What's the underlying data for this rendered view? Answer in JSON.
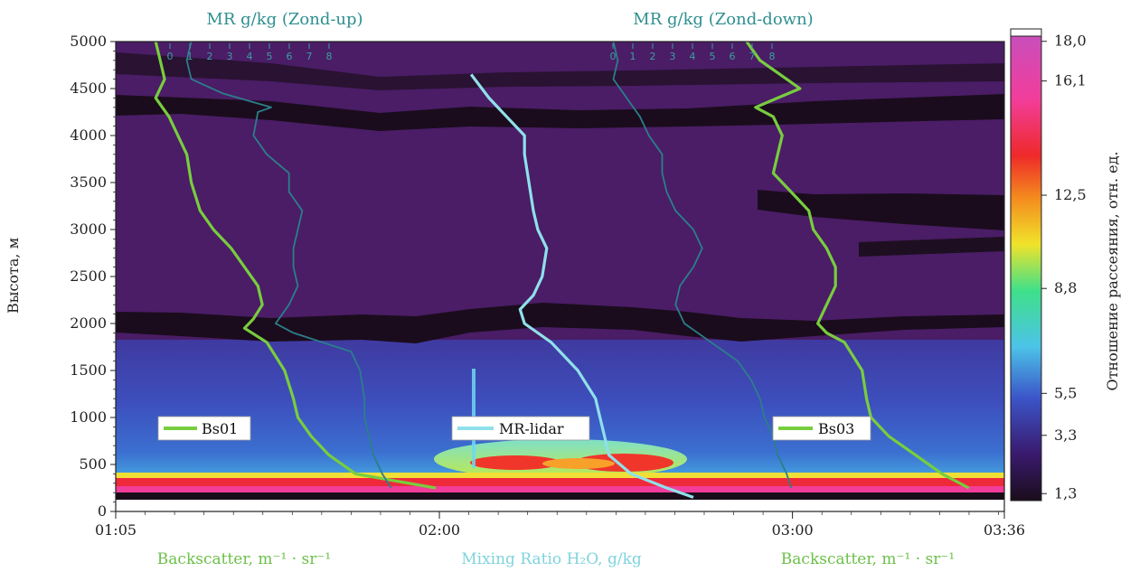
{
  "chart_data": {
    "type": "heatmap",
    "title": "",
    "ylabel": "Высота, м",
    "ylim": [
      0,
      5000
    ],
    "yticks": [
      "0",
      "500",
      "1000",
      "1500",
      "2000",
      "2500",
      "3000",
      "3500",
      "4000",
      "4500",
      "5000"
    ],
    "xticks": [
      "01:05",
      "02:00",
      "03:00",
      "03:36"
    ],
    "x_time_range": [
      "01:05",
      "03:36"
    ],
    "colorbar": {
      "label": "Отношение рассеяния, отн. ед.",
      "ticks": [
        "1,3",
        "3,3",
        "5,5",
        "8,8",
        "12,5",
        "16,1",
        "18,0"
      ],
      "tick_values": [
        1.3,
        3.3,
        5.5,
        8.8,
        12.5,
        16.1,
        18.0
      ],
      "colors": [
        "#1a0d1a",
        "#3a1a6e",
        "#3b55c8",
        "#4cc3e8",
        "#3fe08a",
        "#f0e32a",
        "#f48a1e",
        "#ee2a2a",
        "#f23d9a",
        "#c84fbd"
      ]
    },
    "top_labels": {
      "left": "MR g/kg (Zond-up)",
      "right": "MR g/kg (Zond-down)",
      "sub_ticks": [
        "0",
        "1",
        "2",
        "3",
        "4",
        "5",
        "6",
        "7",
        "8"
      ]
    },
    "bottom_labels": {
      "left": "Backscatter, m⁻¹ · sr⁻¹",
      "center": "Mixing Ratio H₂O, g/kg",
      "right": "Backscatter, m⁻¹ · sr⁻¹"
    },
    "legend": [
      {
        "name": "Bs01",
        "color": "#78cd3e"
      },
      {
        "name": "MR-lidar",
        "color": "#8fe0ea"
      },
      {
        "name": "Bs03",
        "color": "#78cd3e"
      }
    ],
    "series": [
      {
        "name": "Bs01",
        "color": "#78cd3e",
        "points": [
          [
            5000,
            0.045
          ],
          [
            4800,
            0.05
          ],
          [
            4600,
            0.055
          ],
          [
            4400,
            0.045
          ],
          [
            4200,
            0.06
          ],
          [
            4000,
            0.07
          ],
          [
            3800,
            0.08
          ],
          [
            3500,
            0.085
          ],
          [
            3200,
            0.095
          ],
          [
            3000,
            0.11
          ],
          [
            2800,
            0.13
          ],
          [
            2600,
            0.145
          ],
          [
            2400,
            0.16
          ],
          [
            2200,
            0.165
          ],
          [
            2050,
            0.155
          ],
          [
            1950,
            0.145
          ],
          [
            1800,
            0.17
          ],
          [
            1500,
            0.19
          ],
          [
            1200,
            0.2
          ],
          [
            1000,
            0.205
          ],
          [
            800,
            0.22
          ],
          [
            600,
            0.24
          ],
          [
            400,
            0.27
          ],
          [
            250,
            0.36
          ]
        ]
      },
      {
        "name": "MR-lidar",
        "color": "#8fe0ea",
        "points": [
          [
            4650,
            0.4
          ],
          [
            4400,
            0.42
          ],
          [
            4200,
            0.44
          ],
          [
            4000,
            0.46
          ],
          [
            3800,
            0.46
          ],
          [
            3500,
            0.465
          ],
          [
            3200,
            0.47
          ],
          [
            3000,
            0.475
          ],
          [
            2800,
            0.485
          ],
          [
            2500,
            0.48
          ],
          [
            2300,
            0.47
          ],
          [
            2150,
            0.455
          ],
          [
            2000,
            0.46
          ],
          [
            1800,
            0.49
          ],
          [
            1500,
            0.52
          ],
          [
            1200,
            0.54
          ],
          [
            1000,
            0.545
          ],
          [
            800,
            0.55
          ],
          [
            600,
            0.555
          ],
          [
            400,
            0.58
          ],
          [
            250,
            0.62
          ],
          [
            150,
            0.65
          ]
        ]
      },
      {
        "name": "Zond-up",
        "color": "#2b7f8a",
        "points": [
          [
            5000,
            0.085
          ],
          [
            4800,
            0.08
          ],
          [
            4600,
            0.085
          ],
          [
            4450,
            0.12
          ],
          [
            4300,
            0.175
          ],
          [
            4250,
            0.16
          ],
          [
            4000,
            0.155
          ],
          [
            3800,
            0.17
          ],
          [
            3600,
            0.195
          ],
          [
            3400,
            0.195
          ],
          [
            3200,
            0.21
          ],
          [
            3000,
            0.205
          ],
          [
            2800,
            0.2
          ],
          [
            2600,
            0.2
          ],
          [
            2400,
            0.205
          ],
          [
            2200,
            0.195
          ],
          [
            2000,
            0.18
          ],
          [
            1900,
            0.2
          ],
          [
            1700,
            0.265
          ],
          [
            1500,
            0.275
          ],
          [
            1200,
            0.28
          ],
          [
            1000,
            0.28
          ],
          [
            800,
            0.285
          ],
          [
            600,
            0.29
          ],
          [
            400,
            0.3
          ],
          [
            250,
            0.31
          ]
        ]
      },
      {
        "name": "Zond-down",
        "color": "#2b7f8a",
        "points": [
          [
            5000,
            0.56
          ],
          [
            4800,
            0.565
          ],
          [
            4600,
            0.56
          ],
          [
            4400,
            0.575
          ],
          [
            4200,
            0.59
          ],
          [
            4000,
            0.6
          ],
          [
            3800,
            0.615
          ],
          [
            3600,
            0.615
          ],
          [
            3400,
            0.62
          ],
          [
            3200,
            0.63
          ],
          [
            3000,
            0.65
          ],
          [
            2800,
            0.66
          ],
          [
            2600,
            0.65
          ],
          [
            2400,
            0.635
          ],
          [
            2200,
            0.63
          ],
          [
            2000,
            0.64
          ],
          [
            1800,
            0.67
          ],
          [
            1600,
            0.7
          ],
          [
            1400,
            0.715
          ],
          [
            1200,
            0.725
          ],
          [
            1000,
            0.73
          ],
          [
            800,
            0.74
          ],
          [
            600,
            0.745
          ],
          [
            400,
            0.755
          ],
          [
            250,
            0.76
          ]
        ]
      },
      {
        "name": "Bs03",
        "color": "#78cd3e",
        "points": [
          [
            5000,
            0.71
          ],
          [
            4800,
            0.725
          ],
          [
            4600,
            0.755
          ],
          [
            4500,
            0.77
          ],
          [
            4400,
            0.745
          ],
          [
            4300,
            0.72
          ],
          [
            4200,
            0.74
          ],
          [
            4000,
            0.75
          ],
          [
            3800,
            0.745
          ],
          [
            3600,
            0.74
          ],
          [
            3400,
            0.76
          ],
          [
            3200,
            0.78
          ],
          [
            3000,
            0.785
          ],
          [
            2800,
            0.8
          ],
          [
            2600,
            0.81
          ],
          [
            2400,
            0.81
          ],
          [
            2200,
            0.8
          ],
          [
            2000,
            0.79
          ],
          [
            1900,
            0.8
          ],
          [
            1800,
            0.82
          ],
          [
            1500,
            0.84
          ],
          [
            1200,
            0.845
          ],
          [
            1000,
            0.85
          ],
          [
            800,
            0.87
          ],
          [
            600,
            0.9
          ],
          [
            400,
            0.93
          ],
          [
            250,
            0.96
          ]
        ]
      }
    ]
  }
}
